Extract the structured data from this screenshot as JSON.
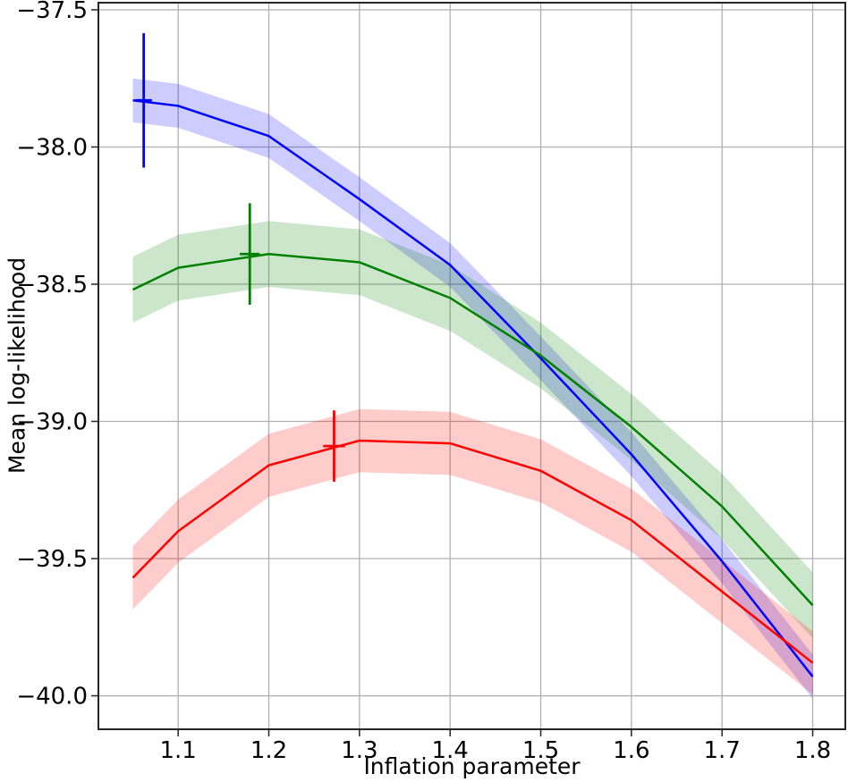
{
  "chart_data": {
    "type": "line",
    "title": "",
    "xlabel": "Inflation parameter",
    "ylabel": "Mean log-likelihood",
    "xlim": [
      1.012,
      1.836
    ],
    "ylim": [
      -40.122,
      -37.474
    ],
    "grid": true,
    "legend": false,
    "grid_color": "#b0b0b0",
    "spine_color": "#262626",
    "text_color": "#000000",
    "x_ticks": {
      "values": [
        1.1,
        1.2,
        1.3,
        1.4,
        1.5,
        1.6,
        1.7,
        1.8
      ],
      "labels": [
        "1.1",
        "1.2",
        "1.3",
        "1.4",
        "1.5",
        "1.6",
        "1.7",
        "1.8"
      ]
    },
    "y_ticks": {
      "values": [
        -37.5,
        -38.0,
        -38.5,
        -39.0,
        -39.5,
        -40.0
      ],
      "labels": [
        "−37.5",
        "−38.0",
        "−38.5",
        "−39.0",
        "−39.5",
        "−40.0"
      ]
    },
    "x": [
      1.05,
      1.1,
      1.2,
      1.3,
      1.4,
      1.5,
      1.6,
      1.7,
      1.8
    ],
    "series": [
      {
        "name": "blue-series",
        "color": "#0000ff",
        "values": [
          -37.83,
          -37.85,
          -37.96,
          -38.19,
          -38.43,
          -38.77,
          -39.12,
          -39.51,
          -39.93
        ],
        "band_halfwidth": 0.08,
        "band_opacity": 0.2,
        "errorbar": {
          "x": 1.062,
          "y": -37.83,
          "yerr": 0.245,
          "xerr": 0.009
        }
      },
      {
        "name": "green-series",
        "color": "#008000",
        "values": [
          -38.52,
          -38.44,
          -38.39,
          -38.42,
          -38.55,
          -38.76,
          -39.02,
          -39.31,
          -39.67
        ],
        "band_halfwidth": 0.12,
        "band_opacity": 0.2,
        "errorbar": {
          "x": 1.179,
          "y": -38.39,
          "yerr": 0.185,
          "xerr": 0.011
        }
      },
      {
        "name": "red-series",
        "color": "#ff0000",
        "values": [
          -39.57,
          -39.4,
          -39.16,
          -39.07,
          -39.08,
          -39.18,
          -39.36,
          -39.62,
          -39.88
        ],
        "band_halfwidth": 0.115,
        "band_opacity": 0.2,
        "errorbar": {
          "x": 1.272,
          "y": -39.09,
          "yerr": 0.13,
          "xerr": 0.012
        }
      }
    ]
  }
}
